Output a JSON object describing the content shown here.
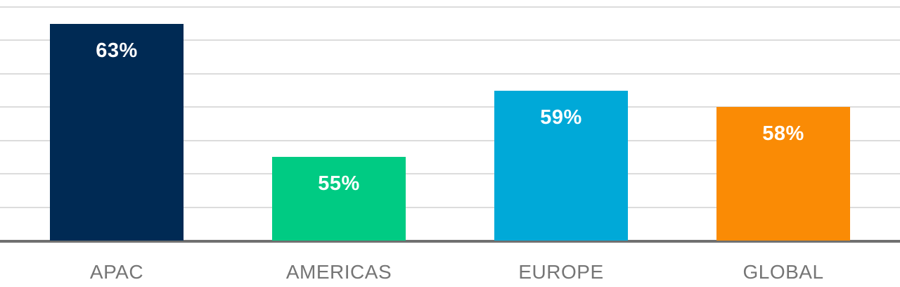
{
  "page": {
    "background_color": "#ffffff"
  },
  "chart_data": {
    "type": "bar",
    "categories": [
      "APAC",
      "AMERICAS",
      "EUROPE",
      "GLOBAL"
    ],
    "values": [
      63,
      55,
      59,
      58
    ],
    "value_labels": [
      "63%",
      "55%",
      "59%",
      "58%"
    ],
    "bar_colors": [
      "#002a54",
      "#00cb83",
      "#00a9d8",
      "#fa8b05"
    ],
    "title": "",
    "xlabel": "",
    "ylabel": "",
    "ylim": [
      50,
      64
    ],
    "gridline_step": 2,
    "grid": true,
    "legend": "none",
    "value_label_color": "#ffffff",
    "category_label_color": "#757575",
    "gridline_color": "#dcdcdc",
    "axis_line_color": "#707070"
  }
}
